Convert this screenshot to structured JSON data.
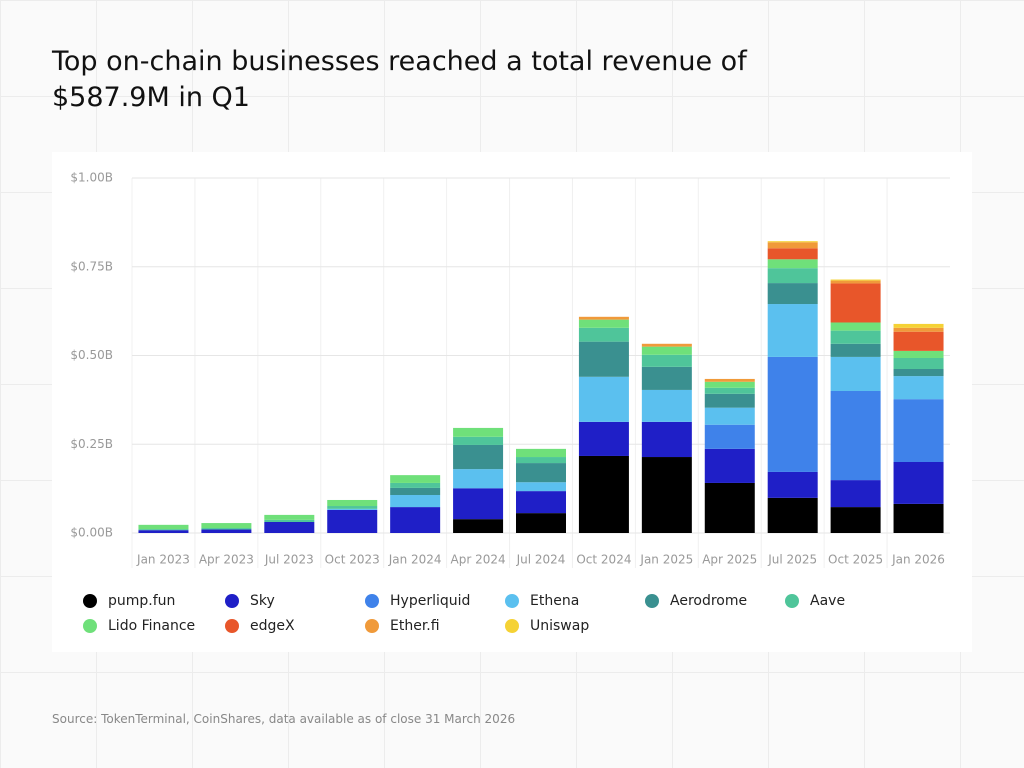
{
  "chart_data": {
    "type": "stacked-bar",
    "title": "Top on-chain businesses reached a total revenue of $587.9M in Q1",
    "note": "Source: TokenTerminal, CoinShares, data available as of close 31 March 2026",
    "categories": [
      "Jan 2023",
      "Apr 2023",
      "Jul 2023",
      "Oct 2023",
      "Jan 2024",
      "Apr 2024",
      "Jul 2024",
      "Oct 2024",
      "Jan 2025",
      "Apr 2025",
      "Jul 2025",
      "Oct 2025",
      "Jan 2026"
    ],
    "ylim": [
      0,
      1.0
    ],
    "yticks": [
      {
        "value": 0,
        "label": "$0.00B"
      },
      {
        "value": 0.25,
        "label": "$0.25B"
      },
      {
        "value": 0.5,
        "label": "$0.50B"
      },
      {
        "value": 0.75,
        "label": "$0.75B"
      },
      {
        "value": 1.0,
        "label": "$1.00B"
      }
    ],
    "grid": true,
    "series": [
      {
        "name": "pump.fun",
        "color": "#000000",
        "values": [
          0,
          0,
          0,
          0,
          0,
          0.039,
          0.056,
          0.217,
          0.214,
          0.141,
          0.099,
          0.073,
          0.082
        ]
      },
      {
        "name": "Sky",
        "color": "#1f1fc7",
        "values": [
          0.008,
          0.01,
          0.031,
          0.065,
          0.073,
          0.087,
          0.062,
          0.096,
          0.099,
          0.096,
          0.073,
          0.076,
          0.118
        ]
      },
      {
        "name": "Hyperliquid",
        "color": "#3f82ea",
        "values": [
          0,
          0,
          0,
          0,
          0,
          0,
          0,
          0,
          0,
          0.068,
          0.324,
          0.251,
          0.177
        ]
      },
      {
        "name": "Ethena",
        "color": "#5bc0ef",
        "values": [
          0,
          0,
          0,
          0.003,
          0.034,
          0.054,
          0.025,
          0.127,
          0.09,
          0.048,
          0.149,
          0.096,
          0.065
        ]
      },
      {
        "name": "Aerodrome",
        "color": "#3a9090",
        "values": [
          0,
          0,
          0,
          0,
          0.02,
          0.068,
          0.054,
          0.099,
          0.065,
          0.039,
          0.059,
          0.037,
          0.02
        ]
      },
      {
        "name": "Aave",
        "color": "#4fc59a",
        "values": [
          0.003,
          0.004,
          0.006,
          0.008,
          0.014,
          0.023,
          0.017,
          0.039,
          0.034,
          0.017,
          0.042,
          0.037,
          0.031
        ]
      },
      {
        "name": "Lido Finance",
        "color": "#6fe07a",
        "values": [
          0.012,
          0.014,
          0.014,
          0.017,
          0.022,
          0.025,
          0.023,
          0.023,
          0.023,
          0.017,
          0.025,
          0.023,
          0.02
        ]
      },
      {
        "name": "edgeX",
        "color": "#e8562a",
        "values": [
          0,
          0,
          0,
          0,
          0,
          0,
          0,
          0,
          0,
          0,
          0.031,
          0.11,
          0.054
        ]
      },
      {
        "name": "Ether.fi",
        "color": "#f09a3a",
        "values": [
          0,
          0,
          0,
          0,
          0,
          0,
          0,
          0.008,
          0.008,
          0.008,
          0.017,
          0.008,
          0.011
        ]
      },
      {
        "name": "Uniswap",
        "color": "#f5d235",
        "values": [
          0,
          0,
          0,
          0,
          0,
          0,
          0,
          0,
          0,
          0,
          0.003,
          0.003,
          0.011
        ]
      }
    ]
  }
}
